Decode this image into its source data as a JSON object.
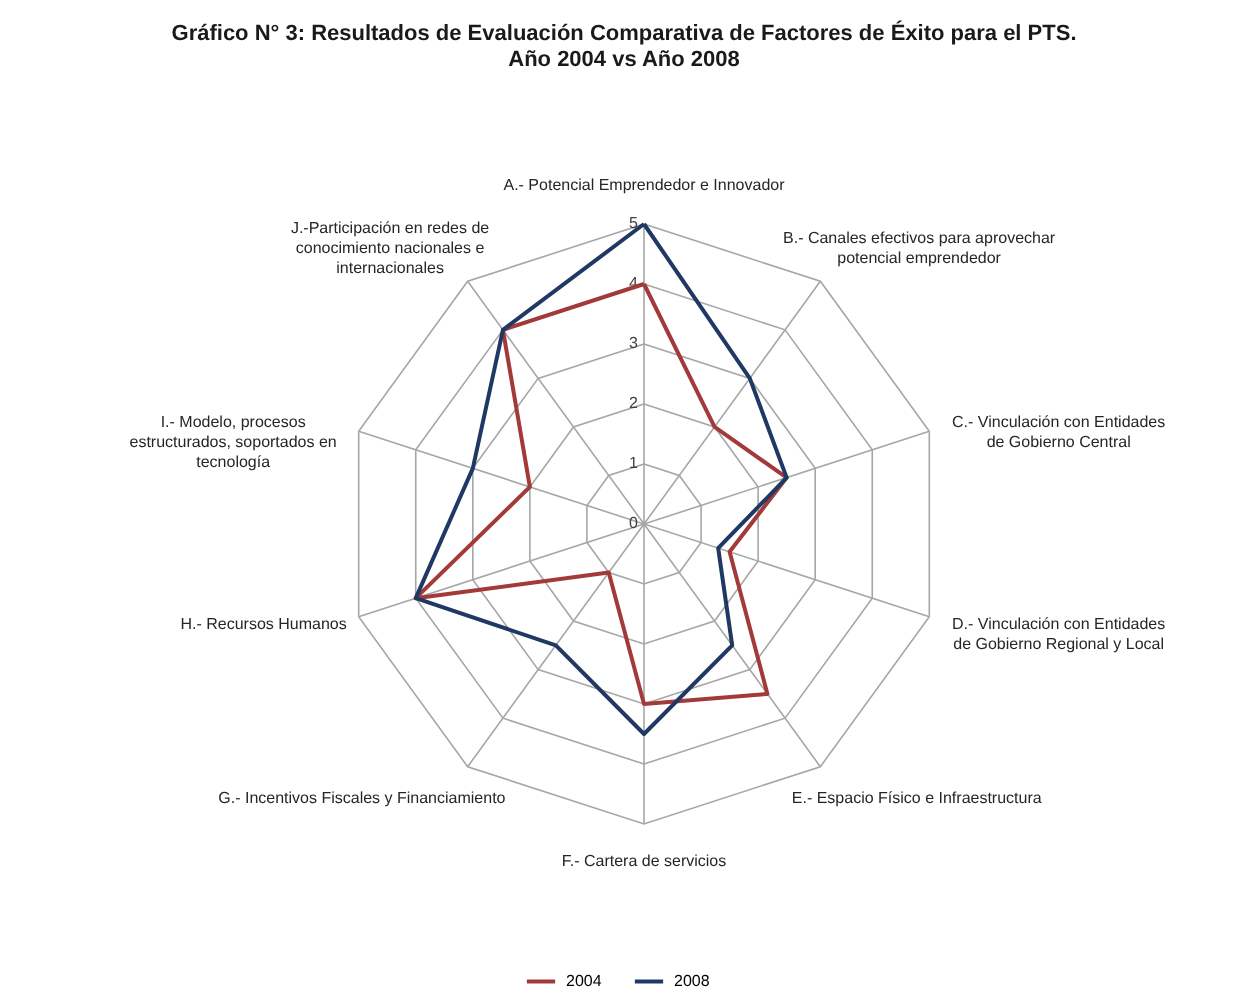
{
  "chart_data": {
    "type": "radar",
    "title": "Gráfico N° 3: Resultados de Evaluación Comparativa de Factores de Éxito para el PTS.\nAño 2004 vs Año 2008",
    "categories": [
      "A.- Potencial Emprendedor e Innovador",
      "B.- Canales efectivos para aprovechar potencial emprendedor",
      "C.- Vinculación con Entidades de Gobierno Central",
      "D.- Vinculación con Entidades de Gobierno Regional y Local",
      "E.- Espacio Físico e Infraestructura",
      "F.- Cartera de servicios",
      "G.- Incentivos Fiscales y Financiamiento",
      "H.- Recursos Humanos",
      "I.- Modelo, procesos estructurados, soportados en tecnología",
      "J.-Participación en redes de conocimiento nacionales e internacionales"
    ],
    "series": [
      {
        "name": "2004",
        "color": "#a33a3a",
        "values": [
          4,
          2,
          2.5,
          1.5,
          3.5,
          3,
          1,
          4,
          2,
          4
        ]
      },
      {
        "name": "2008",
        "color": "#1f3864",
        "values": [
          5,
          3,
          2.5,
          1.3,
          2.5,
          3.5,
          2.5,
          4,
          3,
          4
        ]
      }
    ],
    "ylim": [
      0,
      5
    ],
    "yticks": [
      0,
      1,
      2,
      3,
      4,
      5
    ],
    "grid": true,
    "legend": "bottom",
    "line_style": "solid",
    "marker": "none"
  }
}
